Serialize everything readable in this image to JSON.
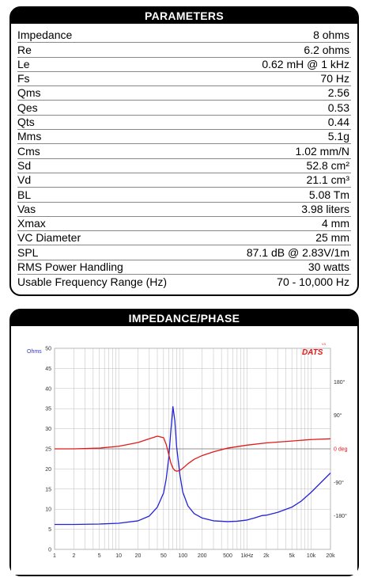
{
  "parameters": {
    "title": "PARAMETERS",
    "rows": [
      {
        "label": "Impedance",
        "value": "8 ohms"
      },
      {
        "label": "Re",
        "value": "6.2 ohms"
      },
      {
        "label": "Le",
        "value": "0.62 mH @ 1 kHz"
      },
      {
        "label": "Fs",
        "value": "70 Hz"
      },
      {
        "label": "Qms",
        "value": "2.56"
      },
      {
        "label": "Qes",
        "value": "0.53"
      },
      {
        "label": "Qts",
        "value": "0.44"
      },
      {
        "label": "Mms",
        "value": "5.1g"
      },
      {
        "label": "Cms",
        "value": "1.02 mm/N"
      },
      {
        "label": "Sd",
        "value": "52.8 cm²"
      },
      {
        "label": "Vd",
        "value": "21.1 cm³"
      },
      {
        "label": "BL",
        "value": "5.08 Tm"
      },
      {
        "label": "Vas",
        "value": "3.98 liters"
      },
      {
        "label": "Xmax",
        "value": "4 mm"
      },
      {
        "label": "VC Diameter",
        "value": "25 mm"
      },
      {
        "label": "SPL",
        "value": "87.1 dB @ 2.83V/1m"
      },
      {
        "label": "RMS Power Handling",
        "value": "30 watts"
      },
      {
        "label": "Usable Frequency Range (Hz)",
        "value": "70 - 10,000 Hz"
      }
    ]
  },
  "impedance_panel": {
    "title": "IMPEDANCE/PHASE",
    "logo": "DATS",
    "logo_sup": "V3",
    "left_unit": "Ohms",
    "right_unit_label": "0 deg"
  },
  "chart_data": {
    "type": "line",
    "x_scale": "log",
    "xlim": [
      1,
      20000
    ],
    "x_ticks": [
      1,
      2,
      5,
      10,
      20,
      50,
      100,
      200,
      500,
      1000,
      2000,
      5000,
      10000,
      20000
    ],
    "x_tick_labels": [
      "1",
      "2",
      "5",
      "10",
      "20",
      "50",
      "100",
      "200",
      "500",
      "1kHz",
      "2k",
      "5k",
      "10k",
      "20k"
    ],
    "ylim": [
      0,
      50
    ],
    "y_ticks": [
      0,
      5,
      10,
      15,
      20,
      25,
      30,
      35,
      40,
      45,
      50
    ],
    "y_tick_labels": [
      "0",
      "5",
      "10",
      "15",
      "20",
      "25",
      "30",
      "35",
      "40",
      "45",
      "50"
    ],
    "ylabel": "Ohms",
    "y2lim": [
      -270,
      270
    ],
    "y2_ticks": [
      180,
      90,
      0,
      -90,
      -180
    ],
    "y2_tick_labels": [
      "180°",
      "90°",
      "0 deg",
      "-90°",
      "-180°"
    ],
    "grid": true,
    "colors": {
      "impedance": "#2323d8",
      "phase": "#e01a1a",
      "grid": "#bbbbbb",
      "logo": "#e01a1a"
    },
    "series": [
      {
        "key": "impedance",
        "axis": "left",
        "x": [
          1,
          2,
          5,
          10,
          20,
          30,
          40,
          50,
          55,
          60,
          65,
          70,
          75,
          80,
          90,
          100,
          120,
          150,
          200,
          300,
          500,
          700,
          1000,
          1300,
          1700,
          2000,
          3000,
          5000,
          7000,
          10000,
          15000,
          20000
        ],
        "y": [
          6.2,
          6.2,
          6.3,
          6.5,
          7.1,
          8.3,
          10.5,
          14.0,
          17.5,
          22.5,
          29.5,
          35.5,
          32.0,
          25.5,
          18.5,
          14.2,
          10.8,
          8.9,
          7.8,
          7.1,
          6.9,
          7.0,
          7.3,
          7.8,
          8.4,
          8.5,
          9.2,
          10.5,
          12.0,
          14.2,
          17.0,
          19.0
        ]
      },
      {
        "key": "phase",
        "axis": "right",
        "x": [
          1,
          2,
          5,
          10,
          20,
          30,
          40,
          50,
          55,
          60,
          65,
          70,
          75,
          80,
          90,
          100,
          120,
          150,
          200,
          300,
          500,
          1000,
          2000,
          5000,
          10000,
          20000
        ],
        "y": [
          0,
          0,
          2,
          7,
          17,
          27,
          34,
          30,
          12,
          -14,
          -38,
          -52,
          -58,
          -60,
          -58,
          -52,
          -40,
          -28,
          -18,
          -8,
          2,
          10,
          16,
          21,
          25,
          27
        ]
      }
    ]
  }
}
